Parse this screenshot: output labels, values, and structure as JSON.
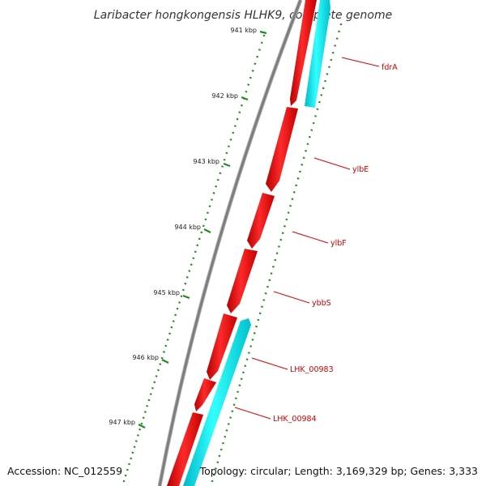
{
  "title": "Laribacter hongkongensis HLHK9, complete genome",
  "footer": {
    "accession": "Accession: NC_012559",
    "topology": "Topology: circular; Length: 3,169,329 bp; Genes: 3,333"
  },
  "scale": {
    "ticks": [
      {
        "label": "941 kbp"
      },
      {
        "label": "942 kbp"
      },
      {
        "label": "943 kbp"
      },
      {
        "label": "944 kbp"
      },
      {
        "label": "945 kbp"
      },
      {
        "label": "946 kbp"
      },
      {
        "label": "947 kbp"
      }
    ]
  },
  "genes": [
    {
      "label": "fdrA"
    },
    {
      "label": "ylbE"
    },
    {
      "label": "ylbF"
    },
    {
      "label": "ybbS"
    },
    {
      "label": "LHK_00983"
    },
    {
      "label": "LHK_00984"
    }
  ],
  "colors": {
    "backbone": "#8a8a8a",
    "forward_cds": "#ff0000",
    "reverse_cds": "#00e5e5",
    "ticks": "#228b22",
    "labels": "#cc0000"
  }
}
